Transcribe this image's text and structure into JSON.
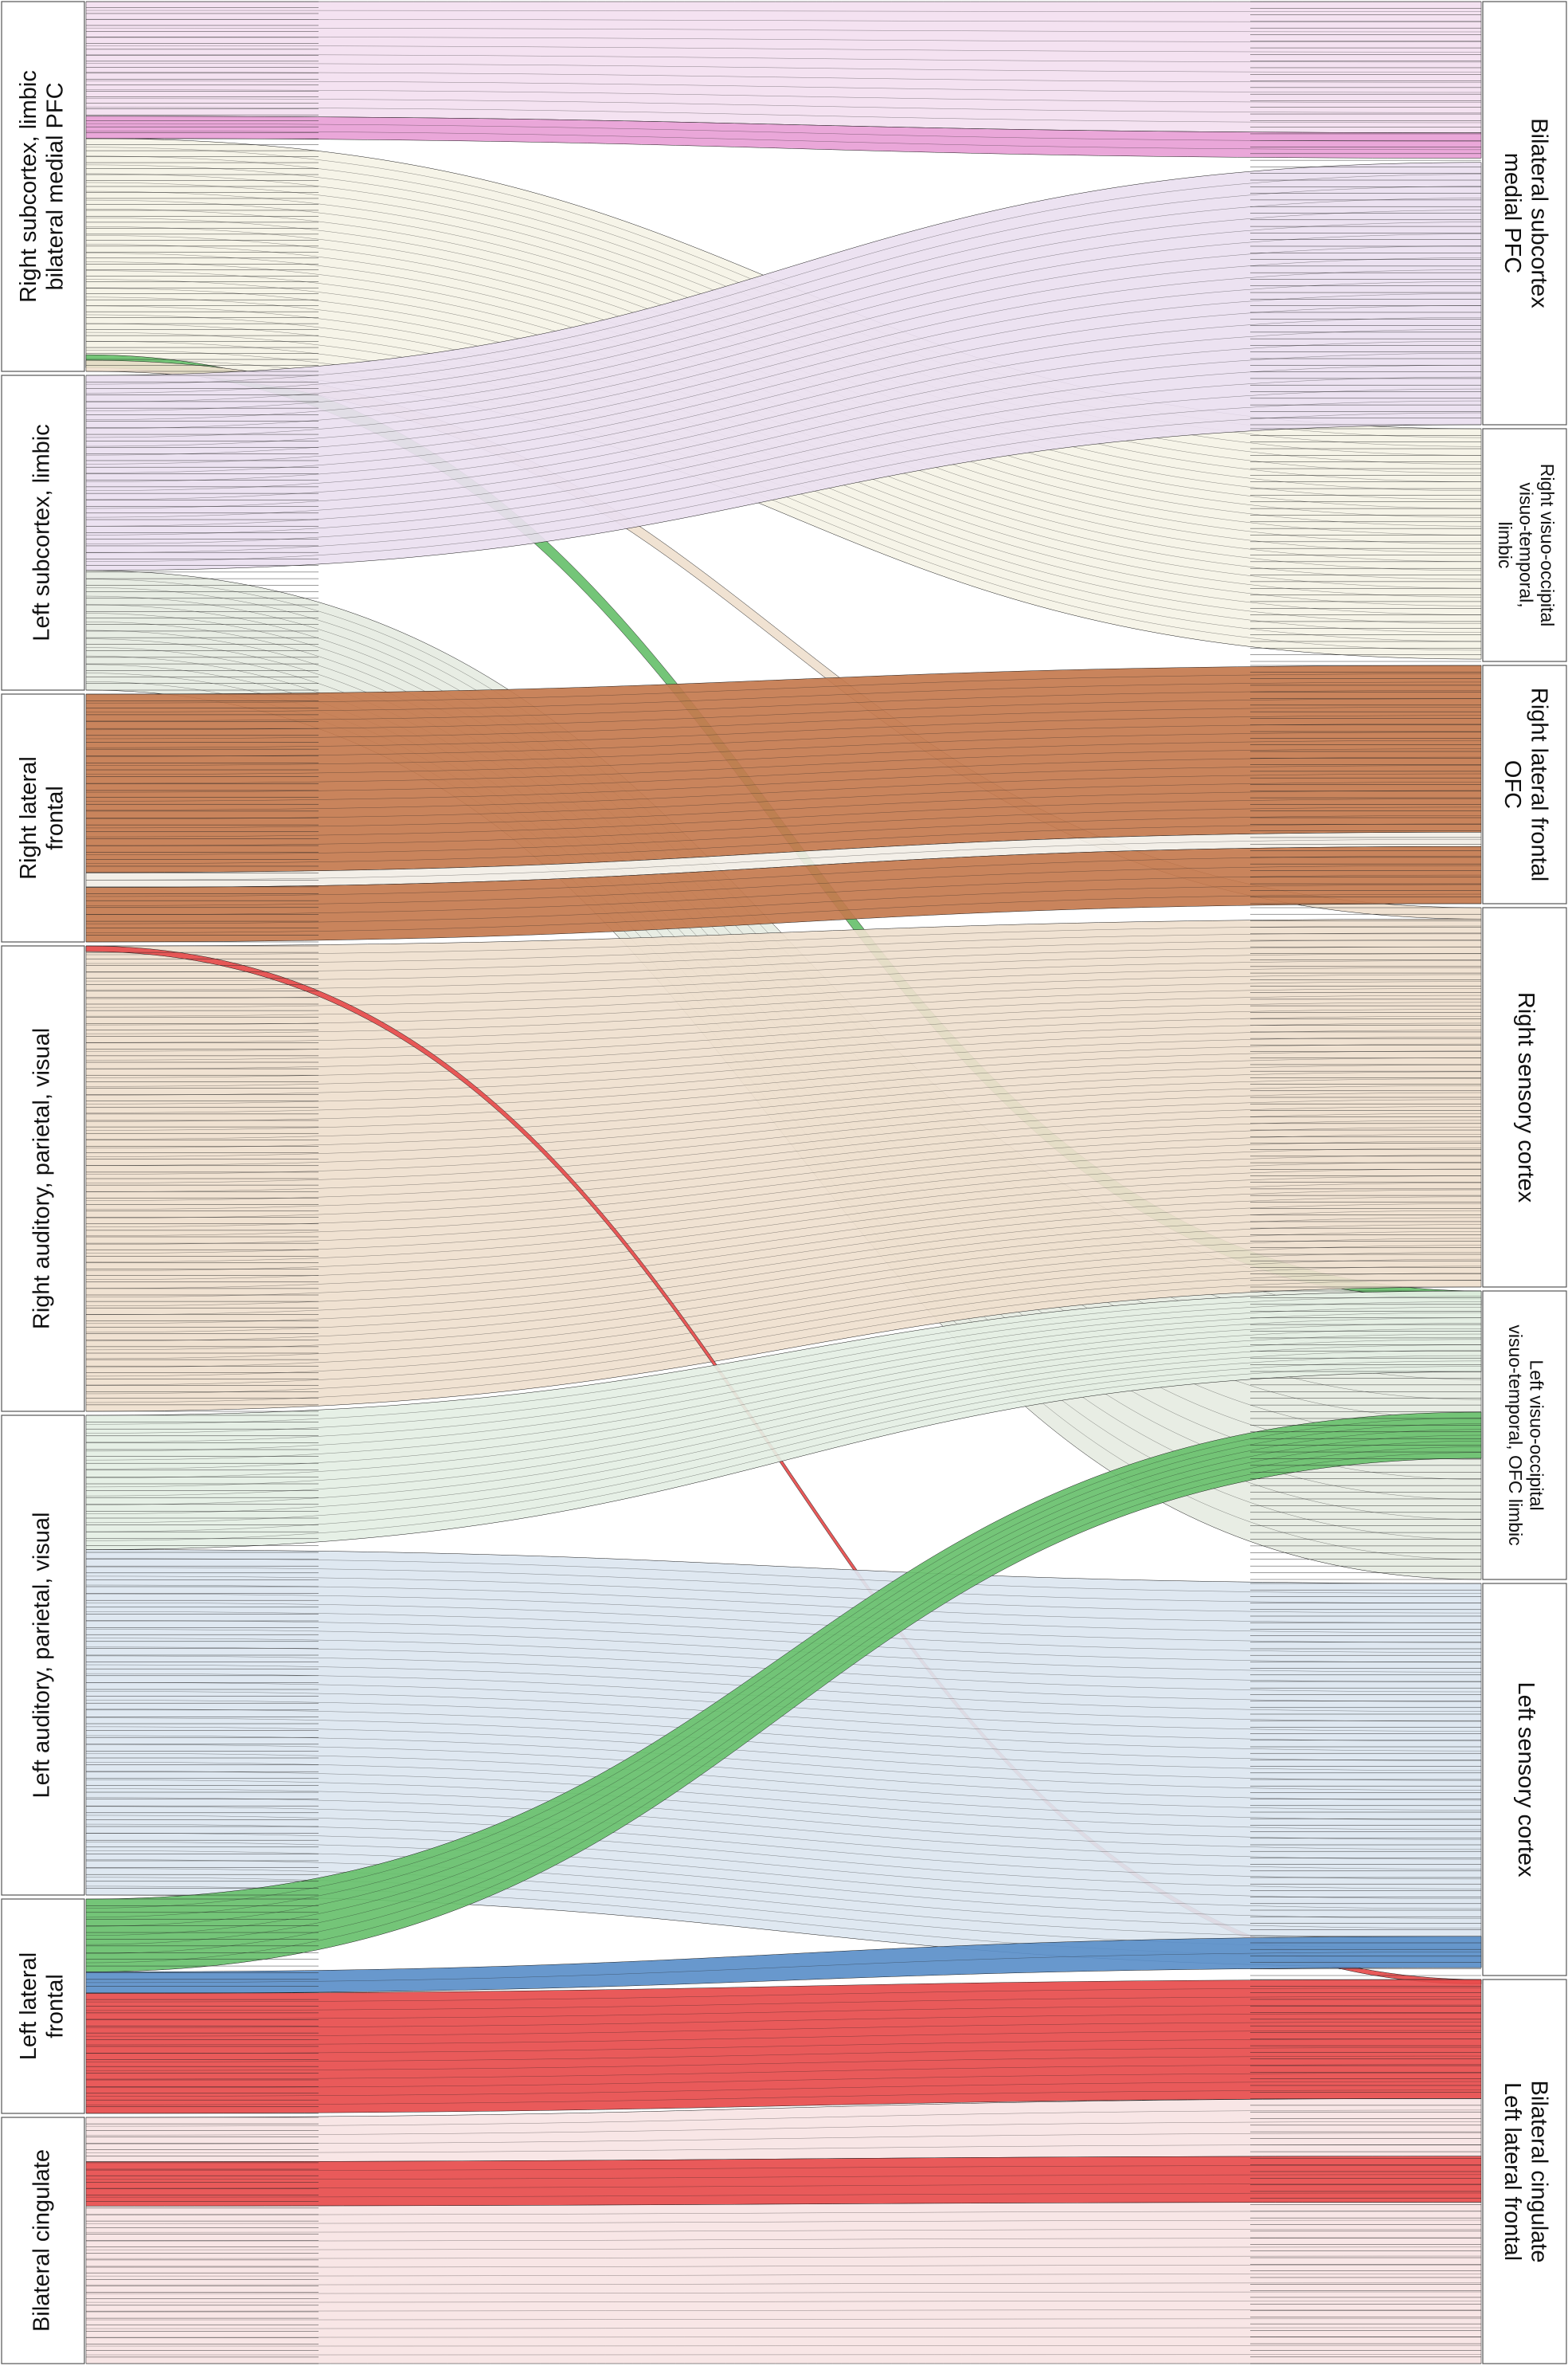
{
  "diagram": {
    "left_groups": [
      {
        "label_lines": [
          "Right subcortex, limbic",
          "bilateral medial PFC"
        ],
        "rows": 62
      },
      {
        "label_lines": [
          "Left subcortex, limbic"
        ],
        "rows": 48
      },
      {
        "label_lines": [
          "Right lateral",
          "frontal"
        ],
        "rows": 36
      },
      {
        "label_lines": [
          "Right auditory, parietal, visual"
        ],
        "rows": 72
      },
      {
        "label_lines": [
          "Left auditory, parietal, visual"
        ],
        "rows": 70
      },
      {
        "label_lines": [
          "Left lateral",
          "frontal"
        ],
        "rows": 32
      },
      {
        "label_lines": [
          "Bilateral cingulate"
        ],
        "rows": 38
      }
    ],
    "right_groups": [
      {
        "label_lines": [
          "Bilateral subcortex",
          "medial PFC"
        ],
        "rows": 64,
        "small": false
      },
      {
        "label_lines": [
          "Right visuo-occipital",
          "visuo-temporal,",
          "limbic"
        ],
        "rows": 35,
        "small": true
      },
      {
        "label_lines": [
          "Right lateral frontal",
          "OFC"
        ],
        "rows": 36,
        "small": false
      },
      {
        "label_lines": [
          "Right sensory cortex"
        ],
        "rows": 58,
        "small": false
      },
      {
        "label_lines": [
          "Left visuo-occipital",
          "visuo-temporal, OFC limbic"
        ],
        "rows": 43,
        "small": true
      },
      {
        "label_lines": [
          "Left sensory cortex"
        ],
        "rows": 60,
        "small": false
      },
      {
        "label_lines": [
          "Bilateral cingulate",
          "Left lateral frontal"
        ],
        "rows": 58,
        "small": false
      }
    ],
    "ribbons": [
      {
        "color": "#f3dff0",
        "from": [
          0,
          0.0,
          0.31
        ],
        "to": [
          0,
          0.0,
          0.31
        ]
      },
      {
        "color": "#e8a0d6",
        "from": [
          0,
          0.31,
          0.37
        ],
        "to": [
          0,
          0.31,
          0.37
        ]
      },
      {
        "color": "#f5f3e6",
        "from": [
          0,
          0.37,
          0.99
        ],
        "to": [
          1,
          0.0,
          0.99
        ]
      },
      {
        "color": "#68c06c",
        "from": [
          0,
          0.955,
          0.99
        ],
        "to": [
          4,
          0.0,
          0.05
        ]
      },
      {
        "color": "#efe0ce",
        "from": [
          0,
          0.97,
          1.0
        ],
        "to": [
          3,
          0.0,
          0.03
        ]
      },
      {
        "color": "#eadff0",
        "from": [
          1,
          0.0,
          0.62
        ],
        "to": [
          0,
          0.38,
          1.0
        ]
      },
      {
        "color": "#e6ece2",
        "from": [
          1,
          0.62,
          1.0
        ],
        "to": [
          4,
          0.03,
          1.0
        ]
      },
      {
        "color": "#c47a4e",
        "from": [
          2,
          0.0,
          0.72
        ],
        "to": [
          2,
          0.0,
          0.7
        ]
      },
      {
        "color": "#f2eee6",
        "from": [
          2,
          0.72,
          0.78
        ],
        "to": [
          2,
          0.7,
          0.76
        ]
      },
      {
        "color": "#c47a4e",
        "from": [
          2,
          0.78,
          1.0
        ],
        "to": [
          2,
          0.76,
          1.0
        ]
      },
      {
        "color": "#efe0ce",
        "from": [
          3,
          0.0,
          1.0
        ],
        "to": [
          3,
          0.03,
          1.0
        ]
      },
      {
        "color": "#e74c4c",
        "from": [
          3,
          0.0,
          0.012
        ],
        "to": [
          6,
          0.0,
          0.012
        ]
      },
      {
        "color": "#e4efe4",
        "from": [
          4,
          0.0,
          0.28
        ],
        "to": [
          4,
          0.0,
          0.28
        ]
      },
      {
        "color": "#dce6f0",
        "from": [
          4,
          0.28,
          1.0
        ],
        "to": [
          5,
          0.0,
          0.98
        ]
      },
      {
        "color": "#68c06c",
        "from": [
          5,
          0.0,
          0.34
        ],
        "to": [
          4,
          0.42,
          0.58
        ]
      },
      {
        "color": "#5b8fc9",
        "from": [
          5,
          0.34,
          0.44
        ],
        "to": [
          5,
          0.9,
          0.98
        ]
      },
      {
        "color": "#e74c4c",
        "from": [
          5,
          0.44,
          1.0
        ],
        "to": [
          6,
          0.0,
          0.31
        ]
      },
      {
        "color": "#f7e4e4",
        "from": [
          6,
          0.0,
          0.18
        ],
        "to": [
          6,
          0.31,
          0.46
        ]
      },
      {
        "color": "#e74c4c",
        "from": [
          6,
          0.18,
          0.36
        ],
        "to": [
          6,
          0.46,
          0.58
        ]
      },
      {
        "color": "#f7e4e4",
        "from": [
          6,
          0.36,
          1.0
        ],
        "to": [
          6,
          0.58,
          1.0
        ]
      }
    ]
  }
}
